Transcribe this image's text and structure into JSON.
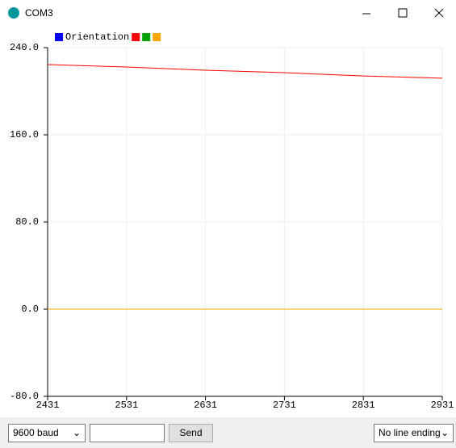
{
  "window": {
    "title": "COM3"
  },
  "chart_data": {
    "type": "line",
    "x": [
      2431,
      2531,
      2631,
      2731,
      2831,
      2931
    ],
    "series": [
      {
        "name": "Orientation",
        "color": "#0000ff",
        "values": [
          0,
          0,
          0,
          0,
          0,
          0
        ]
      },
      {
        "color": "#ff0000",
        "values": [
          224.4,
          222.2,
          219.3,
          217,
          214,
          211.9
        ]
      },
      {
        "color": "#00a000",
        "values": [
          0,
          0,
          0,
          0,
          0,
          0
        ]
      },
      {
        "color": "#ffa500",
        "values": [
          0,
          0,
          0,
          0,
          0,
          0
        ]
      }
    ],
    "xlim": [
      2431,
      2931
    ],
    "xticks": [
      2431,
      2531,
      2631,
      2731,
      2831,
      2931
    ],
    "ylim": [
      -80,
      240
    ],
    "yticks": [
      {
        "value": -80,
        "label": "-80.0"
      },
      {
        "value": 0,
        "label": "0.0"
      },
      {
        "value": 80,
        "label": "80.0"
      },
      {
        "value": 160,
        "label": "160.0"
      },
      {
        "value": 240,
        "label": "240.0"
      }
    ],
    "grid": true
  },
  "controls": {
    "baud": "9600 baud",
    "send": "Send",
    "line_ending": "No line ending"
  }
}
